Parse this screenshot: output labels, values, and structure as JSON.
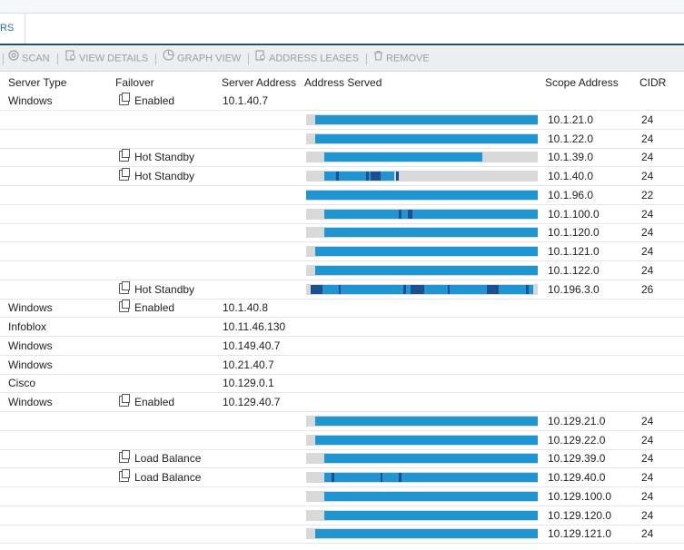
{
  "tab": {
    "label": "RS"
  },
  "toolbar": [
    {
      "label": "SCAN",
      "icon": "scan-icon"
    },
    {
      "label": "VIEW DETAILS",
      "icon": "view-details-icon"
    },
    {
      "label": "GRAPH VIEW",
      "icon": "graph-view-icon"
    },
    {
      "label": "ADDRESS LEASES",
      "icon": "address-leases-icon"
    },
    {
      "label": "REMOVE",
      "icon": "trash-icon"
    }
  ],
  "columns": {
    "server_type": "Server Type",
    "failover": "Failover",
    "server_address": "Server Address",
    "address_served": "Address Served",
    "scope_address": "Scope Address",
    "cidr": "CIDR"
  },
  "colors": {
    "bar_fill": "#1f95d2",
    "bar_dark": "#1c4f8e",
    "bar_bg": "#d7d9db",
    "tab_line": "#1d4f78"
  },
  "rows": [
    {
      "server_type": "Windows",
      "failover": "Enabled",
      "server_address": "10.1.40.7",
      "scope": "",
      "cidr": ""
    },
    {
      "server_type": "",
      "failover": "",
      "server_address": "",
      "scope": "10.1.21.0",
      "cidr": "24",
      "served": {
        "fill_start": 0.04,
        "fill_end": 1.0,
        "dark": []
      }
    },
    {
      "server_type": "",
      "failover": "",
      "server_address": "",
      "scope": "10.1.22.0",
      "cidr": "24",
      "served": {
        "fill_start": 0.04,
        "fill_end": 1.0,
        "dark": []
      }
    },
    {
      "server_type": "",
      "failover": "Hot Standby",
      "server_address": "",
      "scope": "10.1.39.0",
      "cidr": "24",
      "served": {
        "fill_start": 0.08,
        "fill_end": 0.76,
        "dark": []
      }
    },
    {
      "server_type": "",
      "failover": "Hot Standby",
      "server_address": "",
      "scope": "10.1.40.0",
      "cidr": "24",
      "served": {
        "fill_start": 0.08,
        "fill_end": 0.38,
        "dark": [
          [
            0.13,
            0.14
          ],
          [
            0.26,
            0.27
          ],
          [
            0.28,
            0.32
          ],
          [
            0.39,
            0.4
          ]
        ]
      }
    },
    {
      "server_type": "",
      "failover": "",
      "server_address": "",
      "scope": "10.1.96.0",
      "cidr": "22",
      "served": {
        "fill_start": 0.0,
        "fill_end": 1.0,
        "dark": []
      }
    },
    {
      "server_type": "",
      "failover": "",
      "server_address": "",
      "scope": "10.1.100.0",
      "cidr": "24",
      "served": {
        "fill_start": 0.08,
        "fill_end": 1.0,
        "dark": [
          [
            0.4,
            0.41
          ],
          [
            0.44,
            0.46
          ]
        ]
      }
    },
    {
      "server_type": "",
      "failover": "",
      "server_address": "",
      "scope": "10.1.120.0",
      "cidr": "24",
      "served": {
        "fill_start": 0.08,
        "fill_end": 1.0,
        "dark": []
      }
    },
    {
      "server_type": "",
      "failover": "",
      "server_address": "",
      "scope": "10.1.121.0",
      "cidr": "24",
      "served": {
        "fill_start": 0.04,
        "fill_end": 1.0,
        "dark": []
      }
    },
    {
      "server_type": "",
      "failover": "",
      "server_address": "",
      "scope": "10.1.122.0",
      "cidr": "24",
      "served": {
        "fill_start": 0.04,
        "fill_end": 1.0,
        "dark": []
      }
    },
    {
      "server_type": "",
      "failover": "Hot Standby",
      "server_address": "",
      "scope": "10.196.3.0",
      "cidr": "26",
      "served": {
        "fill_start": 0.02,
        "fill_end": 0.98,
        "dark": [
          [
            0.02,
            0.07
          ],
          [
            0.14,
            0.15
          ],
          [
            0.42,
            0.43
          ],
          [
            0.45,
            0.51
          ],
          [
            0.61,
            0.62
          ],
          [
            0.78,
            0.83
          ],
          [
            0.95,
            0.96
          ]
        ]
      }
    },
    {
      "server_type": "Windows",
      "failover": "Enabled",
      "server_address": "10.1.40.8",
      "scope": "",
      "cidr": ""
    },
    {
      "server_type": "Infoblox",
      "failover": "",
      "server_address": "10.11.46.130",
      "scope": "",
      "cidr": ""
    },
    {
      "server_type": "Windows",
      "failover": "",
      "server_address": "10.149.40.7",
      "scope": "",
      "cidr": ""
    },
    {
      "server_type": "Windows",
      "failover": "",
      "server_address": "10.21.40.7",
      "scope": "",
      "cidr": ""
    },
    {
      "server_type": "Cisco",
      "failover": "",
      "server_address": "10.129.0.1",
      "scope": "",
      "cidr": ""
    },
    {
      "server_type": "Windows",
      "failover": "Enabled",
      "server_address": "10.129.40.7",
      "scope": "",
      "cidr": ""
    },
    {
      "server_type": "",
      "failover": "",
      "server_address": "",
      "scope": "10.129.21.0",
      "cidr": "24",
      "served": {
        "fill_start": 0.04,
        "fill_end": 1.0,
        "dark": []
      }
    },
    {
      "server_type": "",
      "failover": "",
      "server_address": "",
      "scope": "10.129.22.0",
      "cidr": "24",
      "served": {
        "fill_start": 0.04,
        "fill_end": 1.0,
        "dark": []
      }
    },
    {
      "server_type": "",
      "failover": "Load Balance",
      "server_address": "",
      "scope": "10.129.39.0",
      "cidr": "24",
      "served": {
        "fill_start": 0.08,
        "fill_end": 1.0,
        "dark": []
      }
    },
    {
      "server_type": "",
      "failover": "Load Balance",
      "server_address": "",
      "scope": "10.129.40.0",
      "cidr": "24",
      "served": {
        "fill_start": 0.08,
        "fill_end": 1.0,
        "dark": [
          [
            0.11,
            0.12
          ],
          [
            0.32,
            0.33
          ],
          [
            0.4,
            0.41
          ]
        ]
      }
    },
    {
      "server_type": "",
      "failover": "",
      "server_address": "",
      "scope": "10.129.100.0",
      "cidr": "24",
      "served": {
        "fill_start": 0.08,
        "fill_end": 1.0,
        "dark": []
      }
    },
    {
      "server_type": "",
      "failover": "",
      "server_address": "",
      "scope": "10.129.120.0",
      "cidr": "24",
      "served": {
        "fill_start": 0.08,
        "fill_end": 1.0,
        "dark": []
      }
    },
    {
      "server_type": "",
      "failover": "",
      "server_address": "",
      "scope": "10.129.121.0",
      "cidr": "24",
      "served": {
        "fill_start": 0.04,
        "fill_end": 1.0,
        "dark": []
      }
    }
  ]
}
